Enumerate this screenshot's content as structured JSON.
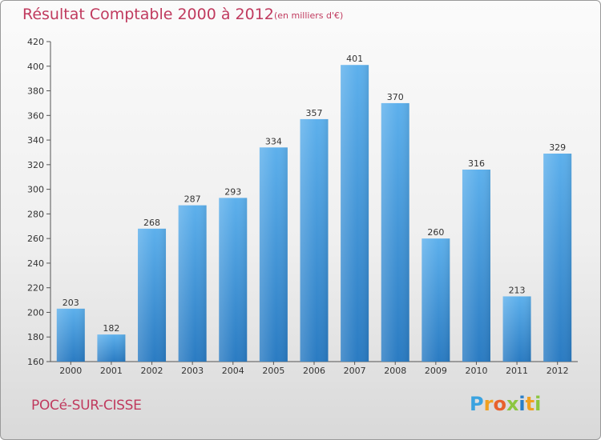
{
  "header": {
    "title": "Résultat Comptable 2000 à 2012",
    "subtitle": "(en milliers d'€)"
  },
  "footer": {
    "commune": "POCé-SUR-CISSE",
    "logo_letters": [
      {
        "char": "P",
        "color": "#3aa3e0"
      },
      {
        "char": "r",
        "color": "#f0a020"
      },
      {
        "char": "o",
        "color": "#e8612c"
      },
      {
        "char": "x",
        "color": "#8cc63f"
      },
      {
        "char": "i",
        "color": "#2a7fc9"
      },
      {
        "char": "t",
        "color": "#f0a020"
      },
      {
        "char": "i",
        "color": "#8cc63f"
      }
    ]
  },
  "chart_data": {
    "type": "bar",
    "title": "Résultat Comptable 2000 à 2012",
    "subtitle": "(en milliers d'€)",
    "categories": [
      "2000",
      "2001",
      "2002",
      "2003",
      "2004",
      "2005",
      "2006",
      "2007",
      "2008",
      "2009",
      "2010",
      "2011",
      "2012"
    ],
    "values": [
      203,
      182,
      268,
      287,
      293,
      334,
      357,
      401,
      370,
      260,
      316,
      213,
      329
    ],
    "ylim": [
      160,
      420
    ],
    "yticks": [
      160,
      180,
      200,
      220,
      240,
      260,
      280,
      300,
      320,
      340,
      360,
      380,
      400,
      420
    ],
    "grid": false,
    "bar_color": "#4a9ede",
    "xlabel": "",
    "ylabel": ""
  }
}
